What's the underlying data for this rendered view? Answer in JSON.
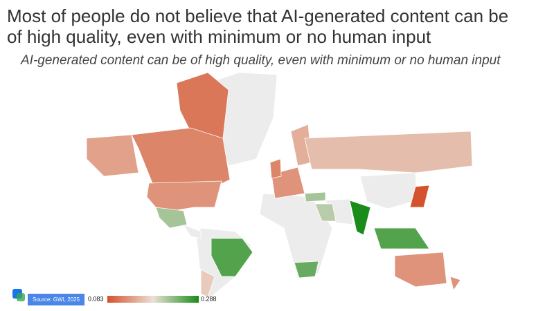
{
  "chart_data": {
    "type": "choropleth",
    "title_lines": [
      "Most of people do not believe that AI-generated content can be",
      "of high quality, even with minimum or no human input"
    ],
    "subtitle": "AI-generated content can be of high quality, even with minimum or no human input",
    "source": "Source: GWI, 2025",
    "range": [
      0.083,
      0.288
    ],
    "colors": [
      "#d4522c",
      "#ebe0d6",
      "#1a8c1a"
    ],
    "values": [
      0.11,
      0.12,
      0.13,
      0.14,
      0.22,
      0.26,
      0.17,
      0.25,
      0.13,
      0.12,
      0.15,
      0.16,
      0.22,
      0.21,
      0.288,
      0.083,
      0.26,
      0.13,
      0.13
    ]
  }
}
